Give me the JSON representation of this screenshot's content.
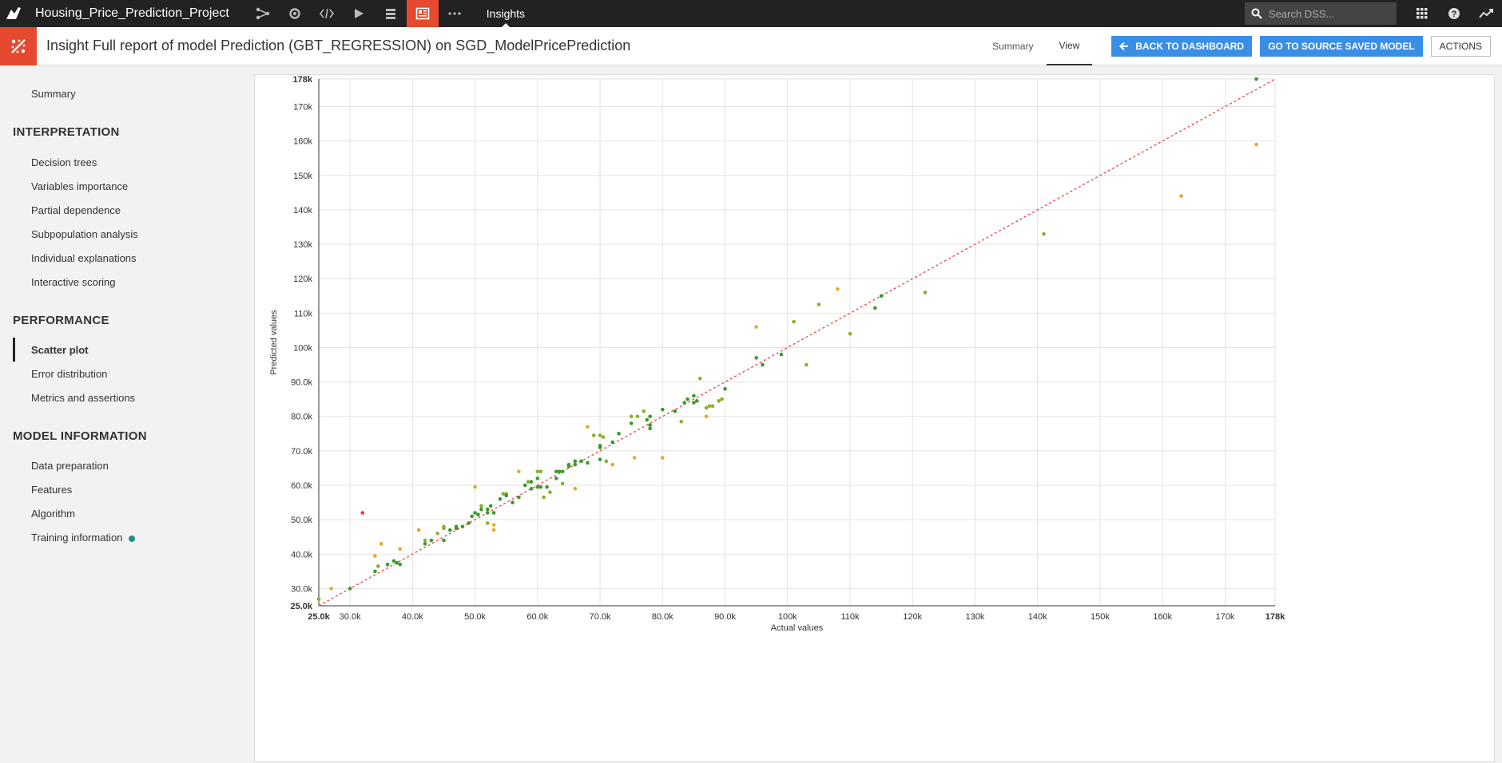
{
  "topbar": {
    "project_name": "Housing_Price_Prediction_Project",
    "icons": [
      "flow-icon",
      "settings-cycle-icon",
      "code-icon",
      "run-icon",
      "deploy-icon",
      "dashboard-icon",
      "more-icon"
    ],
    "active_tab": "Insights",
    "search_placeholder": "Search DSS...",
    "right_icons": [
      "apps-grid-icon",
      "help-icon",
      "activity-icon"
    ]
  },
  "header": {
    "title": "Insight Full report of model Prediction (GBT_REGRESSION) on SGD_ModelPricePrediction",
    "nav_summary": "Summary",
    "nav_view": "View",
    "back_button": "BACK TO DASHBOARD",
    "source_button": "GO TO SOURCE SAVED MODEL",
    "actions_button": "ACTIONS"
  },
  "sidebar": {
    "summary": "Summary",
    "interpretation_title": "INTERPRETATION",
    "interpretation": [
      "Decision trees",
      "Variables importance",
      "Partial dependence",
      "Subpopulation analysis",
      "Individual explanations",
      "Interactive scoring"
    ],
    "performance_title": "PERFORMANCE",
    "performance": [
      "Scatter plot",
      "Error distribution",
      "Metrics and assertions"
    ],
    "model_info_title": "MODEL INFORMATION",
    "model_info": [
      "Data preparation",
      "Features",
      "Algorithm",
      "Training information"
    ]
  },
  "chart_data": {
    "type": "scatter",
    "xlabel": "Actual values",
    "ylabel": "Predicted values",
    "xlim": [
      25000,
      178000
    ],
    "ylim": [
      25000,
      178000
    ],
    "x_ticks": [
      "25.0k",
      "30.0k",
      "40.0k",
      "50.0k",
      "60.0k",
      "70.0k",
      "80.0k",
      "90.0k",
      "100k",
      "110k",
      "120k",
      "130k",
      "140k",
      "150k",
      "160k",
      "170k",
      "178k"
    ],
    "y_ticks": [
      "25.0k",
      "30.0k",
      "40.0k",
      "50.0k",
      "60.0k",
      "70.0k",
      "80.0k",
      "90.0k",
      "100k",
      "110k",
      "120k",
      "130k",
      "140k",
      "150k",
      "160k",
      "170k",
      "178k"
    ],
    "grid": true,
    "reference_line": "y = x",
    "colors": {
      "good": "#3a9a2a",
      "mid": "#8ab02a",
      "warn": "#e6a82e",
      "bad": "#f03a3a",
      "line": "#e85050"
    },
    "points": [
      [
        25000,
        27000
      ],
      [
        27000,
        30000
      ],
      [
        30000,
        30000
      ],
      [
        32000,
        52000
      ],
      [
        34000,
        35000
      ],
      [
        34000,
        39500
      ],
      [
        34500,
        36500
      ],
      [
        35000,
        43000
      ],
      [
        36000,
        37000
      ],
      [
        37000,
        38000
      ],
      [
        37500,
        37500
      ],
      [
        38000,
        37000
      ],
      [
        38000,
        41500
      ],
      [
        41000,
        47000
      ],
      [
        42000,
        43000
      ],
      [
        42000,
        44000
      ],
      [
        43000,
        44000
      ],
      [
        44000,
        46000
      ],
      [
        45000,
        44000
      ],
      [
        45000,
        47500
      ],
      [
        45000,
        48000
      ],
      [
        46000,
        47000
      ],
      [
        47000,
        47500
      ],
      [
        47000,
        48000
      ],
      [
        48000,
        48000
      ],
      [
        49000,
        49000
      ],
      [
        49500,
        51000
      ],
      [
        50000,
        52000
      ],
      [
        50000,
        59500
      ],
      [
        50500,
        51500
      ],
      [
        51000,
        54000
      ],
      [
        51000,
        53000
      ],
      [
        52000,
        49000
      ],
      [
        52000,
        52000
      ],
      [
        52000,
        53000
      ],
      [
        52500,
        54000
      ],
      [
        53000,
        52000
      ],
      [
        53000,
        47000
      ],
      [
        53000,
        48500
      ],
      [
        54000,
        56000
      ],
      [
        54500,
        57500
      ],
      [
        55000,
        57500
      ],
      [
        55000,
        57000
      ],
      [
        56000,
        55000
      ],
      [
        57000,
        56500
      ],
      [
        57000,
        64000
      ],
      [
        58000,
        60000
      ],
      [
        58500,
        61000
      ],
      [
        59000,
        61000
      ],
      [
        59000,
        59000
      ],
      [
        60000,
        64000
      ],
      [
        60000,
        59500
      ],
      [
        60000,
        62000
      ],
      [
        60500,
        64000
      ],
      [
        60500,
        59500
      ],
      [
        61000,
        56500
      ],
      [
        61500,
        59500
      ],
      [
        62000,
        58000
      ],
      [
        63000,
        62000
      ],
      [
        63000,
        64000
      ],
      [
        63500,
        64000
      ],
      [
        64000,
        60500
      ],
      [
        64000,
        64000
      ],
      [
        65000,
        66000
      ],
      [
        65000,
        65500
      ],
      [
        66000,
        66000
      ],
      [
        66000,
        67000
      ],
      [
        66000,
        59000
      ],
      [
        67000,
        67000
      ],
      [
        68000,
        66500
      ],
      [
        68000,
        77000
      ],
      [
        69000,
        74500
      ],
      [
        70000,
        71000
      ],
      [
        70000,
        71500
      ],
      [
        70000,
        74500
      ],
      [
        70500,
        74000
      ],
      [
        70000,
        67500
      ],
      [
        71000,
        67000
      ],
      [
        72000,
        66000
      ],
      [
        72000,
        72500
      ],
      [
        73000,
        75000
      ],
      [
        75000,
        80000
      ],
      [
        75000,
        78000
      ],
      [
        75500,
        68000
      ],
      [
        76000,
        80000
      ],
      [
        77000,
        81500
      ],
      [
        77500,
        79000
      ],
      [
        78000,
        80000
      ],
      [
        78000,
        76500
      ],
      [
        78000,
        77500
      ],
      [
        80000,
        82000
      ],
      [
        80000,
        68000
      ],
      [
        82000,
        81500
      ],
      [
        83000,
        78500
      ],
      [
        83500,
        84000
      ],
      [
        84000,
        85000
      ],
      [
        85000,
        84000
      ],
      [
        85000,
        86000
      ],
      [
        85500,
        84500
      ],
      [
        86000,
        91000
      ],
      [
        87000,
        80000
      ],
      [
        87000,
        82500
      ],
      [
        87500,
        83000
      ],
      [
        88000,
        83000
      ],
      [
        89000,
        84500
      ],
      [
        89500,
        85000
      ],
      [
        90000,
        88000
      ],
      [
        95000,
        106000
      ],
      [
        95000,
        97000
      ],
      [
        96000,
        95000
      ],
      [
        99000,
        98000
      ],
      [
        101000,
        107500
      ],
      [
        103000,
        95000
      ],
      [
        105000,
        112500
      ],
      [
        108000,
        117000
      ],
      [
        110000,
        104000
      ],
      [
        114000,
        111500
      ],
      [
        115000,
        115000
      ],
      [
        122000,
        116000
      ],
      [
        141000,
        133000
      ],
      [
        163000,
        144000
      ],
      [
        175000,
        159000
      ],
      [
        175000,
        178000
      ]
    ]
  }
}
